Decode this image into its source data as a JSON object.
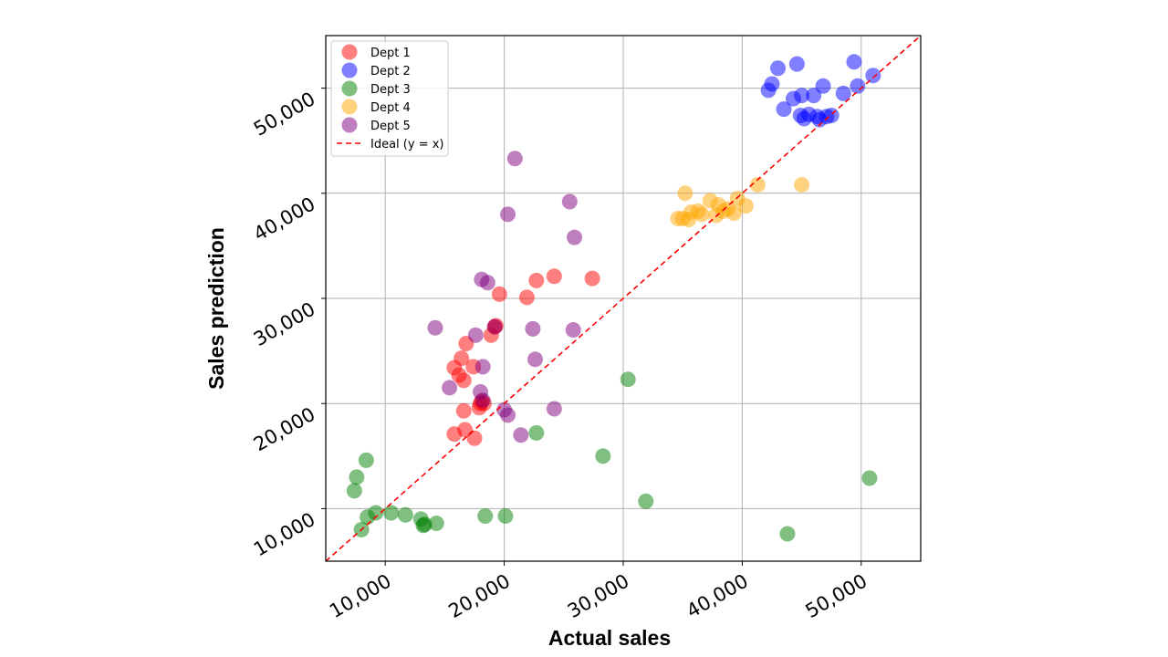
{
  "chart_data": {
    "type": "scatter",
    "title": "",
    "xlabel": "Actual sales",
    "ylabel": "Sales prediction",
    "xlim": [
      5000,
      55000
    ],
    "ylim": [
      5000,
      55000
    ],
    "xticks": [
      10000,
      20000,
      30000,
      40000,
      50000
    ],
    "yticks": [
      10000,
      20000,
      30000,
      40000,
      50000
    ],
    "xtick_labels": [
      "10,000",
      "20,000",
      "30,000",
      "40,000",
      "50,000"
    ],
    "ytick_labels": [
      "10,000",
      "20,000",
      "30,000",
      "40,000",
      "50,000"
    ],
    "grid": true,
    "legend_position": "top-left",
    "series": [
      {
        "name": "Dept 1",
        "color": "#ff0000",
        "x": [
          15800,
          16200,
          16400,
          16600,
          16800,
          17400,
          15800,
          16600,
          16700,
          17500,
          18100,
          17900,
          18300,
          18900,
          19300,
          19200,
          19600,
          21900,
          22700,
          24200,
          27400,
          18000
        ],
        "y": [
          23400,
          22700,
          24300,
          22200,
          25700,
          23500,
          17100,
          19300,
          17500,
          16700,
          20200,
          19600,
          20000,
          26500,
          27400,
          27300,
          30400,
          30100,
          31700,
          32100,
          31900,
          20000
        ]
      },
      {
        "name": "Dept 2",
        "color": "#0000ff",
        "x": [
          42200,
          42500,
          43000,
          43500,
          44300,
          44600,
          45000,
          44900,
          45200,
          45600,
          46000,
          46300,
          46500,
          46800,
          47100,
          47500,
          48500,
          49400,
          49700,
          51000
        ],
        "y": [
          49800,
          50400,
          51900,
          48000,
          49000,
          52300,
          49300,
          47400,
          47100,
          47500,
          49300,
          47300,
          47000,
          50200,
          47300,
          47400,
          49500,
          52500,
          50200,
          51200
        ]
      },
      {
        "name": "Dept 3",
        "color": "#008000",
        "x": [
          7400,
          7600,
          8000,
          8400,
          8500,
          9200,
          10500,
          11700,
          13000,
          13200,
          13300,
          14300,
          18400,
          20100,
          22700,
          28300,
          30400,
          31900,
          43800,
          50700
        ],
        "y": [
          11700,
          13000,
          8000,
          14600,
          9200,
          9600,
          9600,
          9400,
          9000,
          8400,
          8500,
          8600,
          9300,
          9300,
          17200,
          15000,
          22300,
          10700,
          7600,
          12900
        ]
      },
      {
        "name": "Dept 4",
        "color": "#ffa500",
        "x": [
          34600,
          35000,
          35200,
          35500,
          35700,
          36300,
          36600,
          37300,
          37800,
          38000,
          38400,
          38800,
          39300,
          39600,
          40300,
          41300,
          45000
        ],
        "y": [
          37600,
          37600,
          40000,
          37500,
          38200,
          38300,
          38000,
          39300,
          37900,
          38900,
          38300,
          38500,
          38100,
          39500,
          38800,
          40800,
          40800
        ]
      },
      {
        "name": "Dept 5",
        "color": "#800080",
        "x": [
          14200,
          15400,
          17600,
          18100,
          18200,
          18600,
          19200,
          20000,
          20300,
          20900,
          21400,
          22400,
          22600,
          24200,
          25500,
          25800,
          25900,
          18000,
          18200,
          20300
        ],
        "y": [
          27200,
          21500,
          26500,
          31800,
          23500,
          31500,
          27300,
          19400,
          18900,
          43300,
          17000,
          27100,
          24200,
          19500,
          39200,
          27000,
          35800,
          21100,
          20300,
          38000
        ]
      }
    ],
    "reference_line": {
      "name": "Ideal (y = x)",
      "color": "#ff0000",
      "style": "dashed",
      "x": [
        5000,
        55000
      ],
      "y": [
        5000,
        55000
      ]
    }
  }
}
